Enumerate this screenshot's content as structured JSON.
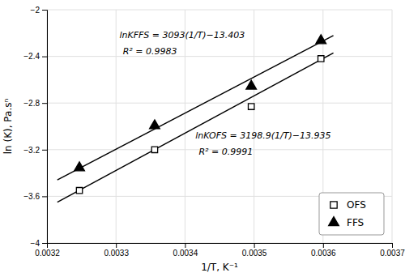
{
  "chart_data": {
    "type": "scatter",
    "xlabel": "1/T, K⁻¹",
    "ylabel": "ln (K), Pa.sⁿ",
    "xlim": [
      0.0032,
      0.0037
    ],
    "ylim": [
      -4.0,
      -2.0
    ],
    "xticks": [
      0.0032,
      0.0033,
      0.0034,
      0.0035,
      0.0036,
      0.0037
    ],
    "yticks": [
      {
        "value": -4.0,
        "label": "−4"
      },
      {
        "value": -3.6,
        "label": "−3.6"
      },
      {
        "value": -3.2,
        "label": "−3.2"
      },
      {
        "value": -2.8,
        "label": "−2.8"
      },
      {
        "value": -2.4,
        "label": "−2.4"
      },
      {
        "value": -2.0,
        "label": "−2"
      }
    ],
    "grid": true,
    "legend": "lower-right",
    "series": [
      {
        "type": "line",
        "color": "black",
        "x": [
          0.003215,
          0.003615
        ],
        "values": [
          -3.6505365,
          -2.3709765
        ]
      },
      {
        "type": "line",
        "color": "black",
        "x": [
          0.003215,
          0.003615
        ],
        "values": [
          -3.459005,
          -2.221805
        ]
      },
      {
        "name": "OFS",
        "type": "scatter",
        "marker": "square-open",
        "color": "black",
        "x": [
          0.003247,
          0.003356,
          0.003496,
          0.003597
        ],
        "values": [
          -3.55,
          -3.2,
          -2.83,
          -2.42
        ]
      },
      {
        "name": "FFS",
        "type": "scatter",
        "marker": "triangle",
        "color": "black",
        "x": [
          0.003247,
          0.003356,
          0.003496,
          0.003597
        ],
        "values": [
          -3.355,
          -2.995,
          -2.655,
          -2.265
        ]
      }
    ],
    "annotations": [
      "lnKFFS = 3093(1/T)−13.403",
      "R² = 0.9983",
      "lnKOFS = 3198.9(1/T)−13.935",
      "R² = 0.9991"
    ]
  }
}
